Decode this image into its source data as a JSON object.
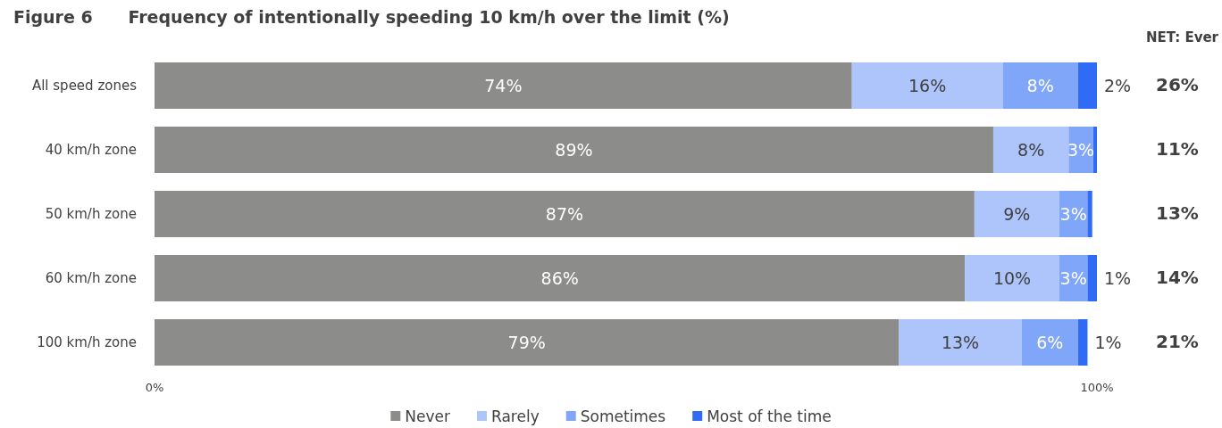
{
  "chart_data": {
    "type": "bar",
    "orientation": "horizontal",
    "stacked": true,
    "title": "Figure 6      Frequency of intentionally speeding 10 km/h over the limit (%)",
    "categories": [
      "All speed zones",
      "40 km/h zone",
      "50 km/h zone",
      "60 km/h zone",
      "100 km/h zone"
    ],
    "series": [
      {
        "name": "Never",
        "color": "#8c8c8a",
        "values": [
          74,
          89,
          87,
          86,
          79
        ],
        "value_labels": [
          "74%",
          "89%",
          "87%",
          "86%",
          "79%"
        ]
      },
      {
        "name": "Rarely",
        "color": "#adc5fb",
        "values": [
          16,
          8,
          9,
          10,
          13
        ],
        "value_labels": [
          "16%",
          "8%",
          "9%",
          "10%",
          "13%"
        ]
      },
      {
        "name": "Sometimes",
        "color": "#80a6fa",
        "values": [
          8,
          2.6,
          3,
          3,
          6
        ],
        "value_labels": [
          "8%",
          "3%",
          "3%",
          "3%",
          "6%"
        ]
      },
      {
        "name": "Most of the time",
        "color": "#2f6bf5",
        "values": [
          2,
          0.4,
          0.5,
          1,
          1
        ],
        "value_labels": [
          "2%",
          null,
          null,
          "1%",
          "1%"
        ]
      }
    ],
    "annotations": [
      "NET: Ever",
      "26%",
      "11%",
      "13%",
      "14%",
      "21%"
    ],
    "xlim": [
      0,
      100
    ],
    "xticks": [
      {
        "value": 0,
        "label": "0%"
      },
      {
        "value": 100,
        "label": "100%"
      }
    ],
    "grid": false,
    "legend": "bottom",
    "tick_labels": "xy"
  }
}
